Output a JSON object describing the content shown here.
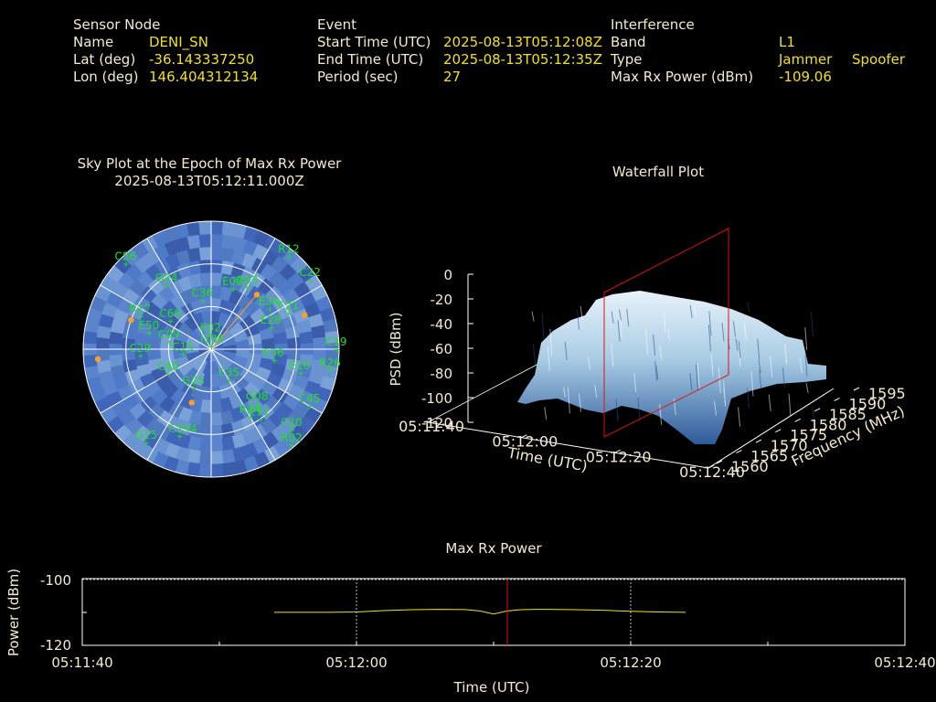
{
  "header": {
    "sensor": {
      "title": "Sensor Node",
      "name_label": "Name",
      "name_value": "DENI_SN",
      "lat_label": "Lat (deg)",
      "lat_value": "-36.143337250",
      "lon_label": "Lon (deg)",
      "lon_value": "146.404312134"
    },
    "event": {
      "title": "Event",
      "start_label": "Start Time (UTC)",
      "start_value": "2025-08-13T05:12:08Z",
      "end_label": "End Time (UTC)",
      "end_value": "2025-08-13T05:12:35Z",
      "period_label": "Period (sec)",
      "period_value": "27"
    },
    "interference": {
      "title": "Interference",
      "band_label": "Band",
      "band_value": "L1",
      "type_label": "Type",
      "type_value_1": "Jammer",
      "type_value_2": "Spoofer",
      "power_label": "Max Rx Power (dBm)",
      "power_value": "-109.06"
    }
  },
  "colors": {
    "label": "#f4ead0",
    "value": "#f0e020",
    "satellite": "#22e022",
    "interference_marker": "#ffa020",
    "sky_fill": "#4a72c0",
    "max_power_line": "#f0e020",
    "cursor": "#e01010",
    "grid": "#c0c0c0"
  },
  "chart_data": [
    {
      "type": "scatter",
      "title": "Sky Plot at the Epoch of Max Rx Power",
      "subtitle": "2025-08-13T05:12:11.000Z",
      "satellites": [
        {
          "id": "I106",
          "az": 2,
          "el": 88
        },
        {
          "id": "R12",
          "az": 40,
          "el": 5
        },
        {
          "id": "C22",
          "az": 55,
          "el": 5
        },
        {
          "id": "E03",
          "az": 20,
          "el": 45
        },
        {
          "id": "G03",
          "az": 30,
          "el": 40
        },
        {
          "id": "C56",
          "az": 315,
          "el": 5
        },
        {
          "id": "G24",
          "az": 325,
          "el": 35
        },
        {
          "id": "E34",
          "az": 55,
          "el": 40
        },
        {
          "id": "C21",
          "az": 65,
          "el": 30
        },
        {
          "id": "E28",
          "az": 70,
          "el": 45
        },
        {
          "id": "C36",
          "az": 350,
          "el": 55
        },
        {
          "id": "R17",
          "az": 295,
          "el": 35
        },
        {
          "id": "E50",
          "az": 285,
          "el": 45
        },
        {
          "id": "C60",
          "az": 305,
          "el": 55
        },
        {
          "id": "C09",
          "az": 280,
          "el": 60
        },
        {
          "id": "E02",
          "az": 0,
          "el": 80
        },
        {
          "id": "C15",
          "az": 260,
          "el": 70
        },
        {
          "id": "E36",
          "az": 100,
          "el": 45
        },
        {
          "id": "C19",
          "az": 90,
          "el": 2
        },
        {
          "id": "R26",
          "az": 100,
          "el": 5
        },
        {
          "id": "E10",
          "az": 105,
          "el": 25
        },
        {
          "id": "C35",
          "az": 150,
          "el": 65
        },
        {
          "id": "C45",
          "az": 120,
          "el": 10
        },
        {
          "id": "G08",
          "az": 140,
          "el": 40
        },
        {
          "id": "R24",
          "az": 150,
          "el": 35
        },
        {
          "id": "E11",
          "az": 145,
          "el": 30
        },
        {
          "id": "C20",
          "az": 135,
          "el": 10
        },
        {
          "id": "R02",
          "az": 140,
          "el": 2
        },
        {
          "id": "C194",
          "az": 200,
          "el": 25
        },
        {
          "id": "G15",
          "az": 215,
          "el": 10
        },
        {
          "id": "G25",
          "az": 205,
          "el": 60
        },
        {
          "id": "C40",
          "az": 240,
          "el": 55
        },
        {
          "id": "C29",
          "az": 265,
          "el": 40
        }
      ],
      "interference_markers": [
        {
          "az": 40,
          "el": 40
        },
        {
          "az": 70,
          "el": 20
        },
        {
          "az": 290,
          "el": 30
        },
        {
          "az": 265,
          "el": 10
        },
        {
          "az": 200,
          "el": 50
        }
      ],
      "elevation_rings_deg": [
        30,
        60
      ]
    },
    {
      "type": "area",
      "title": "Waterfall Plot",
      "xlabel": "Time (UTC)",
      "ylabel": "Frequency (MHz)",
      "zlabel": "PSD (dBm)",
      "x_ticks": [
        "05:11:40",
        "05:12:00",
        "05:12:20",
        "05:12:40"
      ],
      "y_ticks": [
        "1560",
        "1565",
        "1570",
        "1575",
        "1580",
        "1585",
        "1590",
        "1595"
      ],
      "z_ticks": [
        "0",
        "-20",
        "-40",
        "-60",
        "-80",
        "-100",
        "-120"
      ],
      "zlim": [
        -120,
        0
      ],
      "ylim": [
        1560,
        1595
      ],
      "marker_time": "05:12:11"
    },
    {
      "type": "line",
      "title": "Max Rx Power",
      "xlabel": "Time (UTC)",
      "ylabel": "Power (dBm)",
      "x_ticks": [
        "05:11:40",
        "05:12:00",
        "05:12:20",
        "05:12:40"
      ],
      "y_ticks": [
        "-100",
        "-120"
      ],
      "ylim": [
        -120,
        -100
      ],
      "xlim_sec": [
        0,
        60
      ],
      "grid": true,
      "cursor_sec": 31,
      "series": [
        {
          "x_sec": [
            14,
            18,
            20,
            22,
            24,
            26,
            28,
            29,
            30,
            31,
            32,
            33,
            34,
            36,
            38,
            40,
            42,
            44
          ],
          "values": [
            -110.1,
            -110.1,
            -110.0,
            -109.6,
            -109.3,
            -109.2,
            -109.3,
            -109.7,
            -110.6,
            -109.7,
            -109.3,
            -109.2,
            -109.2,
            -109.3,
            -109.5,
            -109.8,
            -110.0,
            -110.1
          ]
        }
      ]
    }
  ]
}
